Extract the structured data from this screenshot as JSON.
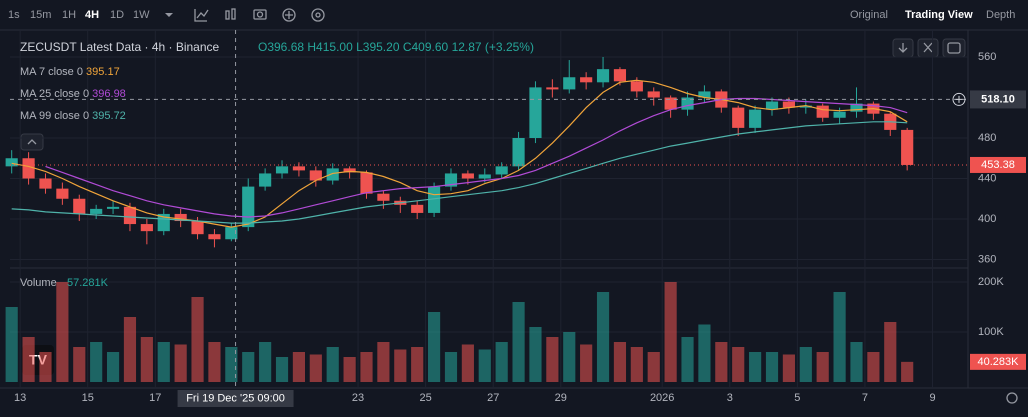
{
  "toolbar": {
    "intervals": [
      "1s",
      "15m",
      "1H",
      "4H",
      "1D",
      "1W"
    ],
    "active": 3,
    "views": [
      "Original",
      "Trading View",
      "Depth"
    ],
    "active_view": 1
  },
  "chart_data": {
    "type": "candlestick",
    "title": "ZECUSDT Latest Data · 4h · Binance",
    "ohlc": {
      "open": "O396.68",
      "high": "H415.00",
      "low": "L395.20",
      "close": "C409.60",
      "change": "12.87 (+3.25%)"
    },
    "up_color": "#26a69a",
    "down_color": "#ef5350",
    "x": [
      12.75,
      13.25,
      13.75,
      14.25,
      14.75,
      15.25,
      15.75,
      16.25,
      16.75,
      17.25,
      17.75,
      18.25,
      18.75,
      19.25,
      19.75,
      20.25,
      20.75,
      21.25,
      21.75,
      22.25,
      22.75,
      23.25,
      23.75,
      24.25,
      24.75,
      25.25,
      25.75,
      26.25,
      26.75,
      27.25,
      27.75,
      28.25,
      28.75,
      29.25,
      29.75,
      30.25,
      30.75,
      31.25,
      31.75,
      32.25,
      32.75,
      33.25,
      33.75,
      34.25,
      34.75,
      35.25,
      35.75,
      36.25,
      36.75,
      37.25,
      37.75,
      38.25,
      38.75,
      39.25
    ],
    "open": [
      452,
      460,
      440,
      430,
      420,
      405,
      410,
      412,
      395,
      388,
      405,
      398,
      385,
      380,
      392,
      432,
      445,
      452,
      448,
      438,
      450,
      446,
      425,
      418,
      414,
      406,
      432,
      445,
      440,
      444,
      452,
      480,
      530,
      528,
      540,
      535,
      548,
      536,
      526,
      520,
      508,
      520,
      526,
      510,
      490,
      508,
      516,
      510,
      512,
      500,
      506,
      514,
      504,
      488
    ],
    "high": [
      468,
      466,
      445,
      436,
      424,
      414,
      418,
      416,
      400,
      410,
      410,
      402,
      390,
      396,
      440,
      450,
      458,
      456,
      452,
      455,
      452,
      448,
      428,
      422,
      418,
      436,
      450,
      448,
      450,
      456,
      486,
      536,
      538,
      557,
      545,
      560,
      550,
      540,
      530,
      522,
      526,
      532,
      528,
      512,
      512,
      520,
      520,
      518,
      514,
      510,
      530,
      516,
      506,
      490
    ],
    "low": [
      445,
      434,
      425,
      414,
      398,
      400,
      405,
      388,
      375,
      384,
      392,
      380,
      372,
      378,
      388,
      428,
      440,
      442,
      432,
      434,
      440,
      420,
      410,
      406,
      400,
      402,
      428,
      434,
      436,
      440,
      448,
      475,
      520,
      524,
      528,
      530,
      532,
      520,
      512,
      500,
      502,
      515,
      505,
      482,
      485,
      502,
      504,
      504,
      496,
      494,
      500,
      498,
      482,
      448
    ],
    "close": [
      460,
      440,
      430,
      420,
      405,
      410,
      412,
      395,
      388,
      405,
      398,
      385,
      380,
      392,
      432,
      445,
      452,
      448,
      438,
      450,
      446,
      425,
      418,
      414,
      406,
      432,
      445,
      440,
      444,
      452,
      480,
      530,
      528,
      540,
      535,
      548,
      536,
      526,
      520,
      508,
      520,
      526,
      510,
      490,
      508,
      516,
      510,
      512,
      500,
      506,
      514,
      504,
      488,
      453.38
    ],
    "series": [
      {
        "name": "MA 7 close 0",
        "current": 395.17,
        "color": "#f0a43a",
        "values": [
          455,
          452,
          447,
          440,
          432,
          425,
          418,
          412,
          406,
          402,
          400,
          398,
          395,
          392,
          395,
          402,
          415,
          428,
          438,
          445,
          447,
          446,
          442,
          436,
          428,
          424,
          425,
          428,
          435,
          440,
          448,
          460,
          475,
          492,
          510,
          525,
          535,
          537,
          535,
          530,
          524,
          520,
          518,
          515,
          510,
          508,
          510,
          512,
          508,
          507,
          508,
          509,
          506,
          496
        ]
      },
      {
        "name": "MA 25 close 0",
        "current": 396.98,
        "color": "#b14bd6",
        "values": [
          null,
          null,
          452,
          446,
          440,
          434,
          428,
          423,
          418,
          414,
          411,
          408,
          405,
          403,
          402,
          403,
          406,
          410,
          414,
          418,
          422,
          426,
          428,
          430,
          431,
          432,
          434,
          436,
          438,
          440,
          443,
          448,
          455,
          462,
          470,
          478,
          487,
          495,
          502,
          508,
          512,
          515,
          518,
          519,
          519,
          518,
          517,
          516,
          515,
          514,
          513,
          512,
          510,
          505
        ]
      },
      {
        "name": "MA 99 close 0",
        "current": 395.72,
        "color": "#4fb3aa",
        "values": [
          410,
          409,
          407,
          406,
          405,
          404,
          403,
          402,
          401,
          400,
          399,
          398,
          397,
          396,
          396,
          397,
          398,
          400,
          403,
          406,
          409,
          412,
          414,
          416,
          418,
          420,
          422,
          424,
          426,
          428,
          431,
          435,
          440,
          445,
          450,
          455,
          460,
          464,
          468,
          472,
          475,
          478,
          481,
          484,
          486,
          488,
          490,
          492,
          493,
          494,
          495,
          496,
          496,
          495
        ]
      }
    ],
    "volume": {
      "name": "Volume",
      "current": "57.281K",
      "last_label": "40.283K",
      "values": [
        150,
        90,
        60,
        200,
        70,
        80,
        60,
        130,
        90,
        80,
        75,
        170,
        80,
        70,
        60,
        80,
        50,
        60,
        55,
        70,
        50,
        60,
        80,
        65,
        70,
        140,
        60,
        75,
        65,
        80,
        160,
        110,
        90,
        100,
        75,
        180,
        80,
        70,
        60,
        200,
        90,
        115,
        80,
        70,
        60,
        60,
        55,
        70,
        60,
        180,
        80,
        60,
        120,
        40.283
      ],
      "ylim": [
        0,
        220
      ],
      "yticks": [
        {
          "value": 100,
          "label": "100K"
        },
        {
          "value": 200,
          "label": "200K"
        }
      ]
    },
    "xlim": [
      12.7,
      41.05
    ],
    "xticks": [
      13,
      15,
      17,
      23,
      25,
      27,
      29,
      {
        "value": 32,
        "label": "2026"
      },
      {
        "value": 34,
        "label": "3"
      },
      {
        "value": 36,
        "label": "5"
      },
      {
        "value": 38,
        "label": "7"
      },
      {
        "value": 40,
        "label": "9"
      }
    ],
    "ylim": [
      354.57,
      581.73
    ],
    "yticks": [
      360,
      400,
      440,
      480,
      560
    ],
    "crosshair": {
      "time": {
        "value": 19.375,
        "label": "Fri 19 Dec '25 09:00"
      },
      "price": {
        "value": 518.1,
        "label": "518.10"
      }
    },
    "grid": true
  }
}
